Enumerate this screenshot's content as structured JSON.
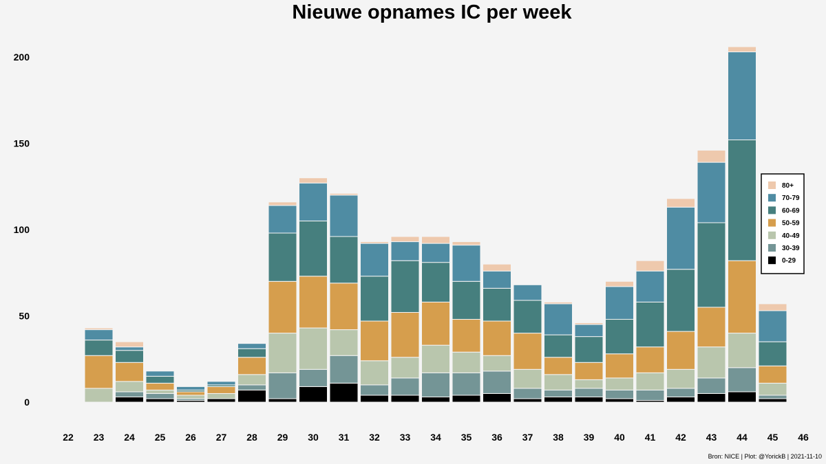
{
  "chart_data": {
    "type": "bar",
    "stacked": true,
    "title": "Nieuwe opnames IC per week",
    "xlabel": "",
    "ylabel": "",
    "x_ticks": [
      "22",
      "23",
      "24",
      "25",
      "26",
      "27",
      "28",
      "29",
      "30",
      "31",
      "32",
      "33",
      "34",
      "35",
      "36",
      "37",
      "38",
      "39",
      "40",
      "41",
      "42",
      "43",
      "44",
      "45",
      "46"
    ],
    "categories": [
      "23",
      "24",
      "25",
      "26",
      "27",
      "28",
      "29",
      "30",
      "31",
      "32",
      "33",
      "34",
      "35",
      "36",
      "37",
      "38",
      "39",
      "40",
      "41",
      "42",
      "43",
      "44",
      "45"
    ],
    "y_ticks": [
      0,
      50,
      100,
      150,
      200
    ],
    "ylim": [
      0,
      207
    ],
    "xlim": [
      22,
      46
    ],
    "legend_position": "right",
    "series": [
      {
        "name": "0-29",
        "color": "#000000",
        "values": [
          0,
          3,
          2,
          1,
          2,
          7,
          2,
          9,
          11,
          4,
          4,
          3,
          4,
          5,
          2,
          3,
          3,
          2,
          1,
          3,
          5,
          6,
          2
        ]
      },
      {
        "name": "30-39",
        "color": "#749596",
        "values": [
          0,
          3,
          3,
          1,
          0,
          3,
          15,
          10,
          16,
          6,
          10,
          14,
          13,
          13,
          6,
          4,
          5,
          5,
          6,
          5,
          9,
          14,
          2
        ]
      },
      {
        "name": "40-49",
        "color": "#b9c6ad",
        "values": [
          8,
          6,
          2,
          2,
          3,
          6,
          23,
          24,
          15,
          14,
          12,
          16,
          12,
          9,
          11,
          9,
          5,
          7,
          10,
          11,
          18,
          20,
          7
        ]
      },
      {
        "name": "50-59",
        "color": "#d69e4d",
        "values": [
          19,
          11,
          4,
          2,
          4,
          10,
          30,
          30,
          27,
          23,
          26,
          25,
          19,
          20,
          21,
          10,
          10,
          14,
          15,
          22,
          23,
          42,
          10
        ]
      },
      {
        "name": "60-69",
        "color": "#467f7e",
        "values": [
          9,
          7,
          4,
          1,
          1,
          5,
          28,
          32,
          27,
          26,
          30,
          23,
          22,
          19,
          19,
          13,
          15,
          20,
          26,
          36,
          49,
          70,
          14
        ]
      },
      {
        "name": "70-79",
        "color": "#4f8ca3",
        "values": [
          6,
          2,
          3,
          2,
          2,
          3,
          16,
          22,
          24,
          19,
          11,
          11,
          21,
          10,
          9,
          18,
          7,
          19,
          18,
          36,
          35,
          51,
          18
        ]
      },
      {
        "name": "80+",
        "color": "#eec9ad",
        "values": [
          1,
          3,
          0,
          0,
          0,
          0,
          2,
          3,
          1,
          1,
          3,
          4,
          2,
          4,
          0,
          1,
          1,
          3,
          6,
          5,
          7,
          3,
          4
        ]
      }
    ]
  },
  "caption": "Bron: NICE | Plot: @YorickB |  2021-11-10"
}
